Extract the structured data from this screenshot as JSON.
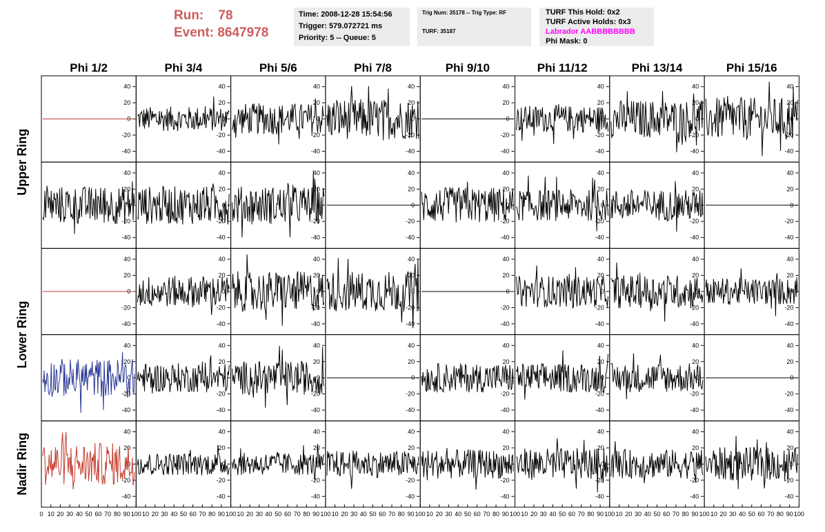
{
  "header": {
    "run_label": "Run:",
    "run_value": "78",
    "event_label": "Event:",
    "event_value": "8647978",
    "time": "Time: 2008-12-28 15:54:56",
    "trigger": "Trigger: 579.072721 ms",
    "priority": "Priority: 5 -- Queue: 5",
    "trig_num": "Trig Num: 35178 -- Trig Type: RF",
    "turf": "TURF: 35187",
    "turf_this_hold": "TURF This Hold: 0x2",
    "turf_active_holds": "TURF Active Holds: 0x3",
    "labrador": "Labrador AABBBBBBBB",
    "phi_mask": "Phi Mask: 0"
  },
  "colors": {
    "header_red": "#cd5c5c",
    "labrador": "#ff00ff",
    "trace_black": "#000000",
    "trace_red": "#c0392b",
    "trace_blue": "#283593",
    "info_bg": "#ececec"
  },
  "chart_data": {
    "type": "line",
    "description_columns": [
      "Phi 1/2",
      "Phi 3/4",
      "Phi 5/6",
      "Phi 7/8",
      "Phi 9/10",
      "Phi 11/12",
      "Phi 13/14",
      "Phi 15/16"
    ],
    "rows": [
      "Upper Ring",
      "",
      "Lower Ring",
      "",
      "Nadir Ring"
    ],
    "row_labels": [
      {
        "text": "Upper Ring",
        "rows": [
          0,
          1
        ]
      },
      {
        "text": "Lower Ring",
        "rows": [
          2,
          3
        ]
      },
      {
        "text": "Nadir Ring",
        "rows": [
          4
        ]
      }
    ],
    "xlim": [
      0,
      100
    ],
    "x_ticks": [
      0,
      10,
      20,
      30,
      40,
      50,
      60,
      70,
      80,
      90,
      100
    ],
    "ylim": [
      -50,
      50
    ],
    "y_ticks": [
      -40,
      -20,
      0,
      20,
      40
    ],
    "grid": false,
    "panels": [
      [
        {
          "a": 0,
          "c": "red"
        },
        {
          "a": 11,
          "c": "black"
        },
        {
          "a": 14,
          "c": "black"
        },
        {
          "a": 18,
          "c": "black"
        },
        {
          "a": 0,
          "c": "black"
        },
        {
          "a": 12,
          "c": "black"
        },
        {
          "a": 17,
          "c": "black"
        },
        {
          "a": 19,
          "c": "black"
        }
      ],
      [
        {
          "a": 17,
          "c": "black"
        },
        {
          "a": 17,
          "c": "black"
        },
        {
          "a": 17,
          "c": "black"
        },
        {
          "a": 0,
          "c": "black"
        },
        {
          "a": 16,
          "c": "black"
        },
        {
          "a": 14,
          "c": "black"
        },
        {
          "a": 14,
          "c": "black"
        },
        {
          "a": 0,
          "c": "black"
        }
      ],
      [
        {
          "a": 0,
          "c": "red"
        },
        {
          "a": 14,
          "c": "black"
        },
        {
          "a": 18,
          "c": "black"
        },
        {
          "a": 18,
          "c": "black"
        },
        {
          "a": 0,
          "c": "black"
        },
        {
          "a": 14,
          "c": "black"
        },
        {
          "a": 15,
          "c": "black"
        },
        {
          "a": 12,
          "c": "black"
        }
      ],
      [
        {
          "a": 17,
          "c": "blue"
        },
        {
          "a": 13,
          "c": "black"
        },
        {
          "a": 15,
          "c": "black"
        },
        {
          "a": 0,
          "c": "black"
        },
        {
          "a": 13,
          "c": "black"
        },
        {
          "a": 13,
          "c": "black"
        },
        {
          "a": 13,
          "c": "black"
        },
        {
          "a": 0,
          "c": "black"
        }
      ],
      [
        {
          "a": 19,
          "c": "red"
        },
        {
          "a": 10,
          "c": "black"
        },
        {
          "a": 10,
          "c": "black"
        },
        {
          "a": 12,
          "c": "black"
        },
        {
          "a": 13,
          "c": "black"
        },
        {
          "a": 14,
          "c": "black"
        },
        {
          "a": 13,
          "c": "black"
        },
        {
          "a": 15,
          "c": "black"
        }
      ]
    ]
  }
}
